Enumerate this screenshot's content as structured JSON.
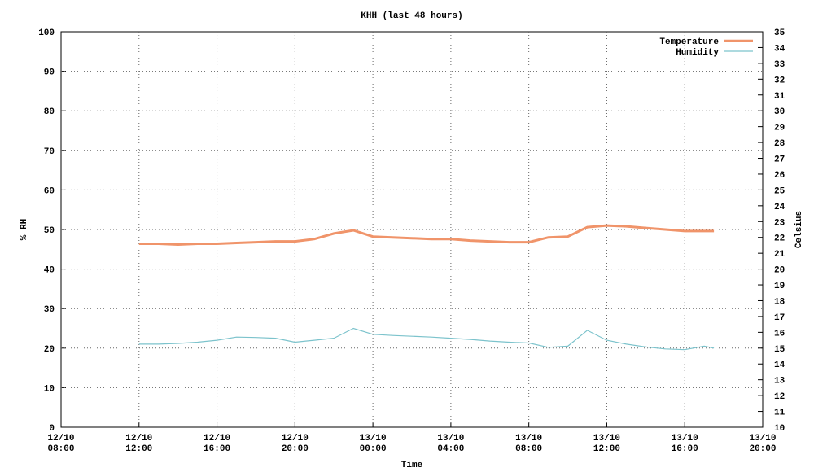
{
  "chart_data": {
    "type": "line",
    "title": "KHH (last 48 hours)",
    "x_label": "Time",
    "y_label": "% RH",
    "y2_label": "Celsius",
    "x": [
      "12/10 12:00",
      "12/10 13:00",
      "12/10 14:00",
      "12/10 15:00",
      "12/10 16:00",
      "12/10 17:00",
      "12/10 18:00",
      "12/10 19:00",
      "12/10 20:00",
      "12/10 21:00",
      "12/10 22:00",
      "12/10 23:00",
      "13/10 00:00",
      "13/10 01:00",
      "13/10 02:00",
      "13/10 03:00",
      "13/10 04:00",
      "13/10 05:00",
      "13/10 06:00",
      "13/10 07:00",
      "13/10 08:00",
      "13/10 09:00",
      "13/10 10:00",
      "13/10 11:00",
      "13/10 12:00",
      "13/10 13:00",
      "13/10 14:00",
      "13/10 15:00",
      "13/10 16:00",
      "13/10 17:00",
      "13/10 17:30"
    ],
    "series": [
      {
        "name": "Temperature",
        "color": "#f0946a",
        "axis": "y2",
        "values": [
          21.6,
          21.6,
          21.55,
          21.6,
          21.6,
          21.65,
          21.7,
          21.75,
          21.75,
          21.9,
          22.25,
          22.45,
          22.05,
          22.0,
          21.95,
          21.9,
          21.9,
          21.8,
          21.75,
          21.7,
          21.7,
          22.0,
          22.05,
          22.65,
          22.75,
          22.7,
          22.6,
          22.5,
          22.4,
          22.4,
          22.4
        ]
      },
      {
        "name": "Humidity",
        "color": "#7cc3cc",
        "values": [
          21,
          21,
          21.2,
          21.5,
          22,
          22.8,
          22.7,
          22.5,
          21.5,
          22,
          22.5,
          25,
          23.5,
          23.2,
          23,
          22.8,
          22.5,
          22.2,
          21.8,
          21.5,
          21.3,
          20.2,
          20.5,
          24.5,
          22,
          21,
          20.3,
          19.8,
          19.6,
          20.5,
          20
        ]
      }
    ],
    "xlim": [
      "12/10 08:00",
      "13/10 20:00"
    ],
    "xticks": [
      "12/10 08:00",
      "12/10 12:00",
      "12/10 16:00",
      "12/10 20:00",
      "13/10 00:00",
      "13/10 04:00",
      "13/10 08:00",
      "13/10 12:00",
      "13/10 16:00",
      "13/10 20:00"
    ],
    "ylim": [
      0,
      100
    ],
    "yticks": [
      0,
      10,
      20,
      30,
      40,
      50,
      60,
      70,
      80,
      90,
      100
    ],
    "y2lim": [
      10,
      35
    ],
    "y2ticks": [
      10,
      11,
      12,
      13,
      14,
      15,
      16,
      17,
      18,
      19,
      20,
      21,
      22,
      23,
      24,
      25,
      26,
      27,
      28,
      29,
      30,
      31,
      32,
      33,
      34,
      35
    ],
    "grid": true,
    "legend": "top-right"
  }
}
